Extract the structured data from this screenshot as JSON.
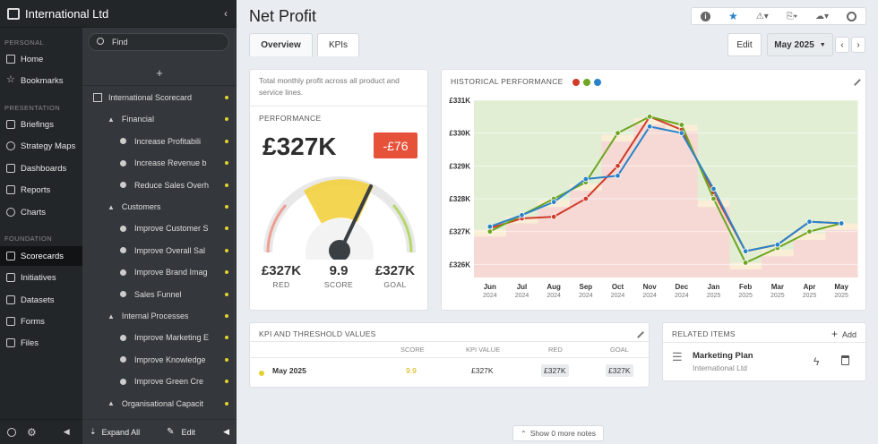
{
  "org": {
    "name": "International Ltd",
    "collapse_glyph": "‹"
  },
  "nav": {
    "sections": [
      "PERSONAL",
      "PRESENTATION",
      "FOUNDATION"
    ],
    "items": [
      "Home",
      "Bookmarks",
      "Briefings",
      "Strategy Maps",
      "Dashboards",
      "Reports",
      "Charts",
      "Scorecards",
      "Initiatives",
      "Datasets",
      "Forms",
      "Files"
    ],
    "active": "Scorecards"
  },
  "tree": {
    "search_placeholder": "Find",
    "add_glyph": "+",
    "rows": [
      {
        "label": "International Scorecard",
        "indent": 0,
        "type": "scorecard"
      },
      {
        "label": "Financial",
        "indent": 1,
        "type": "perspective"
      },
      {
        "label": "Increase Profitabili",
        "indent": 2,
        "type": "objective"
      },
      {
        "label": "Increase Revenue b",
        "indent": 2,
        "type": "objective"
      },
      {
        "label": "Reduce Sales Overh",
        "indent": 2,
        "type": "objective"
      },
      {
        "label": "Customers",
        "indent": 1,
        "type": "perspective"
      },
      {
        "label": "Improve Customer S",
        "indent": 2,
        "type": "objective"
      },
      {
        "label": "Improve Overall Sal",
        "indent": 2,
        "type": "objective"
      },
      {
        "label": "Improve Brand Imag",
        "indent": 2,
        "type": "objective"
      },
      {
        "label": "Sales Funnel",
        "indent": 2,
        "type": "objective"
      },
      {
        "label": "Internal Processes",
        "indent": 1,
        "type": "perspective"
      },
      {
        "label": "Improve Marketing E",
        "indent": 2,
        "type": "objective"
      },
      {
        "label": "Improve Knowledge",
        "indent": 2,
        "type": "objective"
      },
      {
        "label": "Improve Green Cre",
        "indent": 2,
        "type": "objective"
      },
      {
        "label": "Organisational Capacit",
        "indent": 1,
        "type": "perspective"
      }
    ],
    "expand_all": "Expand All",
    "edit": "Edit"
  },
  "page": {
    "title": "Net Profit"
  },
  "tabs": [
    "Overview",
    "KPIs"
  ],
  "toolbar": {
    "edit": "Edit",
    "period": "May 2025"
  },
  "performance": {
    "description": "Total monthly profit across all product and service lines.",
    "label": "PERFORMANCE",
    "value": "£327K",
    "delta": "-£76",
    "red_value": "£327K",
    "red_label": "RED",
    "score_value": "9.9",
    "score_label": "SCORE",
    "goal_value": "£327K",
    "goal_label": "GOAL",
    "gauge_score": 9.9
  },
  "history": {
    "label": "HISTORICAL PERFORMANCE"
  },
  "chart_data": {
    "type": "line",
    "x": [
      "Jun 2024",
      "Jul 2024",
      "Aug 2024",
      "Sep 2024",
      "Oct 2024",
      "Nov 2024",
      "Dec 2024",
      "Jan 2025",
      "Feb 2025",
      "Mar 2025",
      "Apr 2025",
      "May 2025"
    ],
    "xticks_month": [
      "Jun",
      "Jul",
      "Aug",
      "Sep",
      "Oct",
      "Nov",
      "Dec",
      "Jan",
      "Feb",
      "Mar",
      "Apr",
      "May"
    ],
    "xticks_year": [
      "2024",
      "2024",
      "2024",
      "2024",
      "2024",
      "2024",
      "2024",
      "2025",
      "2025",
      "2025",
      "2025",
      "2025"
    ],
    "yticks": [
      "£326K",
      "£327K",
      "£328K",
      "£329K",
      "£330K",
      "£331K"
    ],
    "ylim": [
      325.6,
      331.0
    ],
    "series": [
      {
        "color": "#d13b2a",
        "values": [
          327.1,
          327.4,
          327.45,
          328.0,
          329.0,
          330.5,
          330.1,
          328.2,
          326.4,
          326.6,
          327.3,
          327.25
        ]
      },
      {
        "color": "#6ea521",
        "values": [
          327.0,
          327.5,
          328.0,
          328.5,
          330.0,
          330.5,
          330.25,
          328.0,
          326.05,
          326.5,
          327.0,
          327.25
        ]
      },
      {
        "color": "#2a83c9",
        "values": [
          327.15,
          327.5,
          327.9,
          328.6,
          328.7,
          330.2,
          330.0,
          328.3,
          326.4,
          326.6,
          327.3,
          327.25
        ]
      }
    ],
    "threshold": [
      326.95,
      327.35,
      327.85,
      328.35,
      329.85,
      330.35,
      330.15,
      327.85,
      325.95,
      326.35,
      326.85,
      327.15
    ],
    "grid": true
  },
  "kpi_table": {
    "label": "KPI AND THRESHOLD VALUES",
    "headers": [
      "SCORE",
      "KPI VALUE",
      "RED",
      "GOAL"
    ],
    "row": {
      "period": "May 2025",
      "score": "9.9",
      "kpi_value": "£327K",
      "red": "£327K",
      "goal": "£327K"
    }
  },
  "related": {
    "label": "RELATED ITEMS",
    "add": "Add",
    "item_title": "Marketing Plan",
    "item_sub": "International Ltd"
  },
  "notes": {
    "show": "Show 0 more notes"
  },
  "colors": {
    "accent_yellow": "#e3d22e",
    "red": "#e6513a",
    "green": "#6ea521",
    "blue": "#2a83c9"
  }
}
